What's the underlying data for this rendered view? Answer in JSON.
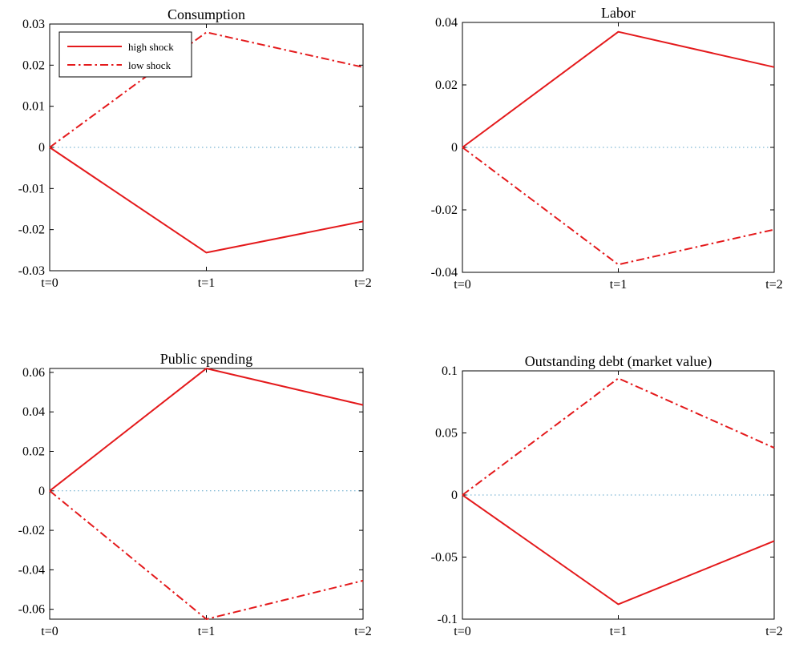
{
  "chart_data": [
    {
      "type": "line",
      "title": "Consumption",
      "categories": [
        "t=0",
        "t=1",
        "t=2"
      ],
      "ylim": [
        -0.03,
        0.03
      ],
      "yticks": [
        "0.03",
        "0.02",
        "0.01",
        "0",
        "-0.01",
        "-0.02",
        "-0.03"
      ],
      "ytick_values": [
        0.03,
        0.02,
        0.01,
        0,
        -0.01,
        -0.02,
        -0.03
      ],
      "series": [
        {
          "name": "high shock",
          "values": [
            0,
            -0.0256,
            -0.018
          ],
          "style": "solid"
        },
        {
          "name": "low shock",
          "values": [
            0,
            0.028,
            0.0195
          ],
          "style": "dashdot"
        }
      ],
      "zero_line": true,
      "legend": "top-left"
    },
    {
      "type": "line",
      "title": "Labor",
      "categories": [
        "t=0",
        "t=1",
        "t=2"
      ],
      "ylim": [
        -0.04,
        0.04
      ],
      "yticks": [
        "0.04",
        "0.02",
        "0",
        "-0.02",
        "-0.04"
      ],
      "ytick_values": [
        0.04,
        0.02,
        0,
        -0.02,
        -0.04
      ],
      "series": [
        {
          "name": "high shock",
          "values": [
            0,
            0.037,
            0.0257
          ],
          "style": "solid"
        },
        {
          "name": "low shock",
          "values": [
            0,
            -0.0375,
            -0.0263
          ],
          "style": "dashdot"
        }
      ],
      "zero_line": true
    },
    {
      "type": "line",
      "title": "Public spending",
      "categories": [
        "t=0",
        "t=1",
        "t=2"
      ],
      "ylim": [
        -0.065,
        0.062
      ],
      "yticks": [
        "0.06",
        "0.04",
        "0.02",
        "0",
        "-0.02",
        "-0.04",
        "-0.06"
      ],
      "ytick_values": [
        0.06,
        0.04,
        0.02,
        0,
        -0.02,
        -0.04,
        -0.06
      ],
      "series": [
        {
          "name": "high shock",
          "values": [
            0,
            0.062,
            0.0435
          ],
          "style": "solid"
        },
        {
          "name": "low shock",
          "values": [
            0,
            -0.065,
            -0.0455
          ],
          "style": "dashdot"
        }
      ],
      "zero_line": true
    },
    {
      "type": "line",
      "title": "Outstanding debt (market value)",
      "categories": [
        "t=0",
        "t=1",
        "t=2"
      ],
      "ylim": [
        -0.1,
        0.1
      ],
      "yticks": [
        "0.1",
        "0.05",
        "0",
        "-0.05",
        "-0.1"
      ],
      "ytick_values": [
        0.1,
        0.05,
        0,
        -0.05,
        -0.1
      ],
      "series": [
        {
          "name": "high shock",
          "values": [
            0,
            -0.088,
            -0.037
          ],
          "style": "solid"
        },
        {
          "name": "low shock",
          "values": [
            0,
            0.094,
            0.038
          ],
          "style": "dashdot"
        }
      ],
      "zero_line": true
    }
  ],
  "colors": {
    "series": "#e41a1c",
    "zero_line": "#5ba3c8",
    "axes": "#000000"
  }
}
